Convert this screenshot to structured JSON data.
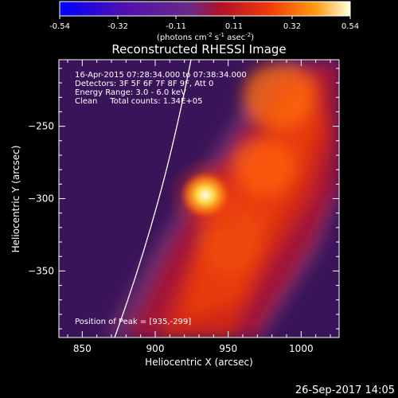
{
  "chart_data": {
    "type": "heatmap",
    "title": "Reconstructed RHESSI Image",
    "xlabel": "Heliocentric X (arcsec)",
    "ylabel": "Heliocentric Y (arcsec)",
    "xlim": [
      834,
      1026
    ],
    "ylim": [
      -396,
      -204
    ],
    "x_ticks": [
      850,
      900,
      950,
      1000
    ],
    "y_ticks": [
      -250,
      -300,
      -350
    ],
    "colorbar": {
      "ticks": [
        "-0.54",
        "-0.32",
        "-0.11",
        "0.11",
        "0.32",
        "0.54"
      ],
      "label_parts": [
        "(photons cm",
        "-2",
        " s",
        "-1",
        " asec",
        "-2",
        ")"
      ],
      "range": [
        -0.54,
        0.54
      ]
    },
    "annotations": [
      "16-Apr-2015 07:28:34.000 to 07:38:34.000",
      "Detectors: 3F 5F 6F 7F 8F 9F, Att 0",
      "Energy Range: 3.0 - 6.0 keV",
      "Clean     Total counts: 1.34E+05"
    ],
    "peak_label": "Position of Peak = [935,-299]",
    "peak": [
      935,
      -299
    ],
    "timestamp": "26-Sep-2017 14:05"
  }
}
